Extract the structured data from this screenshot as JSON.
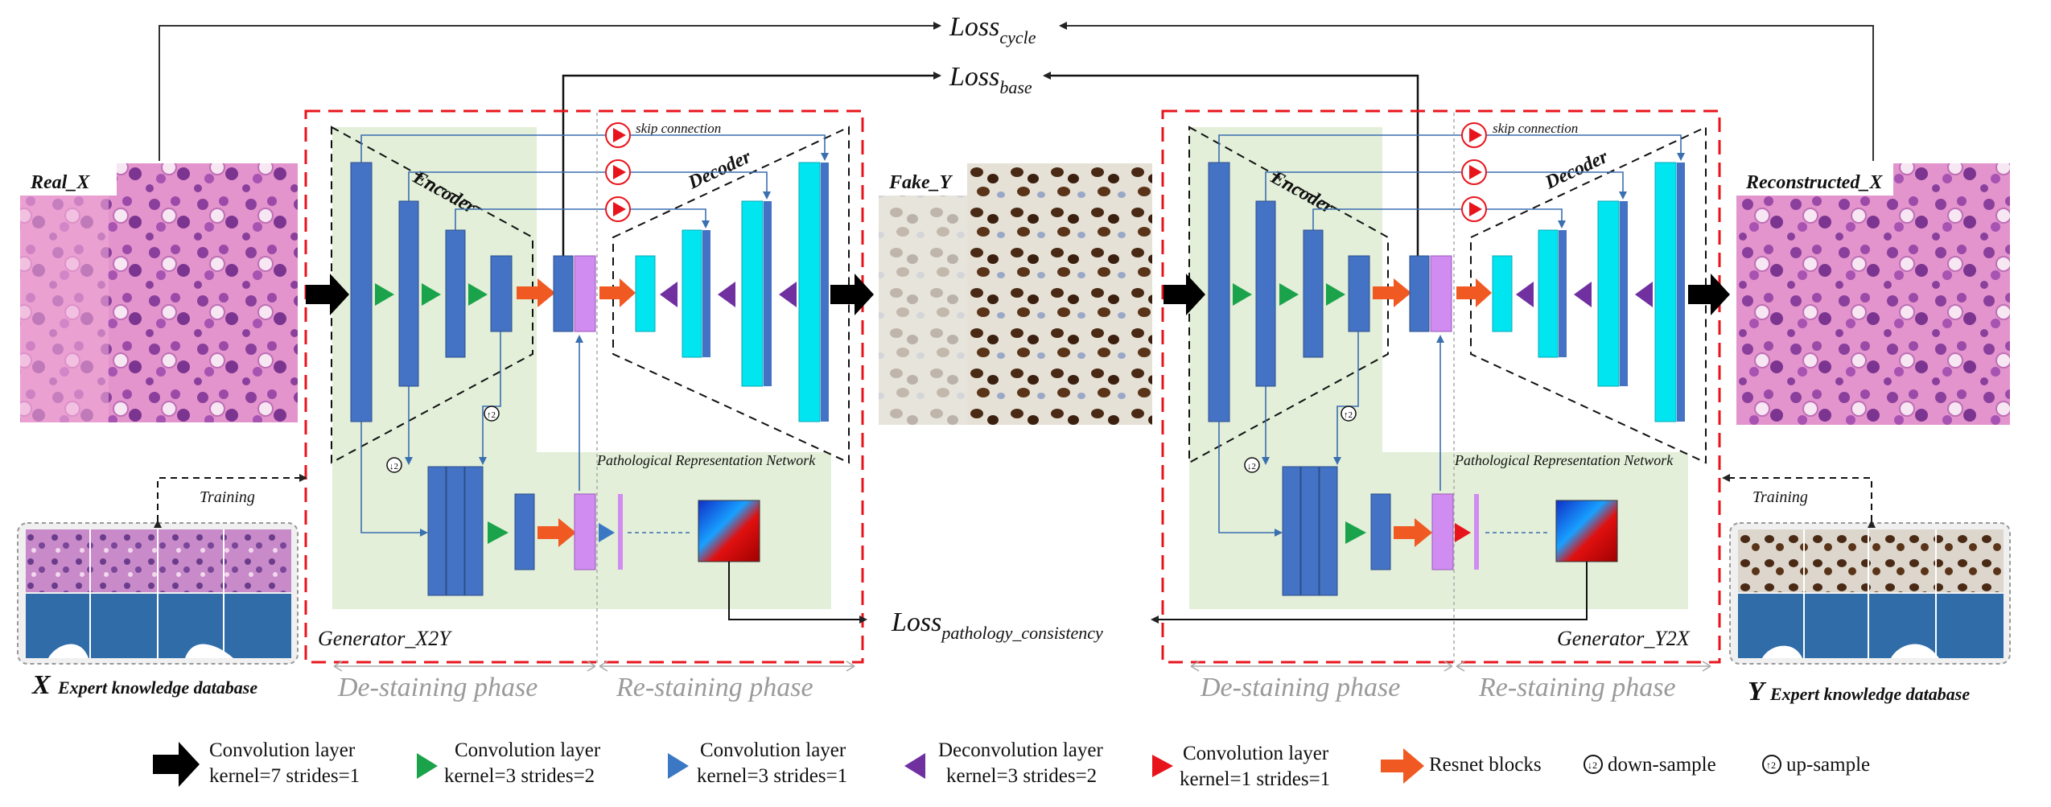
{
  "losses": {
    "cycle": {
      "main": "Loss",
      "sub": "cycle"
    },
    "base": {
      "main": "Loss",
      "sub": "base"
    },
    "pathology": {
      "main": "Loss",
      "sub": "pathology_consistency"
    }
  },
  "images": {
    "real_x": "Real_X",
    "fake_y": "Fake_Y",
    "reconstructed_x": "Reconstructed_X"
  },
  "generators": [
    {
      "name": "Generator_X2Y",
      "encoder": "Encoder",
      "decoder": "Decoder",
      "skip": "skip connection",
      "prn": "Pathological Representation Network"
    },
    {
      "name": "Generator_Y2X",
      "encoder": "Encoder",
      "decoder": "Decoder",
      "skip": "skip connection",
      "prn": "Pathological Representation Network"
    }
  ],
  "phases": {
    "destain": "De-staining phase",
    "restain": "Re-staining phase"
  },
  "training": "Training",
  "databases": {
    "x": {
      "letter": "X",
      "label": "Expert knowledge database"
    },
    "y": {
      "letter": "Y",
      "label": "Expert knowledge database"
    }
  },
  "legend": [
    {
      "icon": "black-arrow",
      "line1": "Convolution layer",
      "line2": "kernel=7 strides=1",
      "color": "#000000"
    },
    {
      "icon": "green-triangle",
      "line1": "Convolution layer",
      "line2": "kernel=3 strides=2",
      "color": "#1aa34a"
    },
    {
      "icon": "blue-triangle",
      "line1": "Convolution layer",
      "line2": "kernel=3 strides=1",
      "color": "#3a78c4"
    },
    {
      "icon": "purple-triangle",
      "line1": "Deconvolution layer",
      "line2": "kernel=3 strides=2",
      "color": "#7030a0"
    },
    {
      "icon": "red-triangle",
      "line1": "Convolution layer",
      "line2": "kernel=1 strides=1",
      "color": "#e8141c"
    },
    {
      "icon": "orange-arrow",
      "line1": "Resnet blocks",
      "line2": "",
      "color": "#f05a22"
    },
    {
      "icon": "down-sample-icon",
      "line1": "down-sample",
      "line2": ""
    },
    {
      "icon": "up-sample-icon",
      "line1": "up-sample",
      "line2": ""
    }
  ],
  "colors": {
    "blue_block": "#4472c4",
    "cyan_block": "#00e5f0",
    "violet_block": "#d08cf0",
    "green_panel": "#e3efd9",
    "red_dashed": "#e8141c",
    "he_pink": "#d46fb8",
    "ihc_brown": "#4a2a14"
  }
}
